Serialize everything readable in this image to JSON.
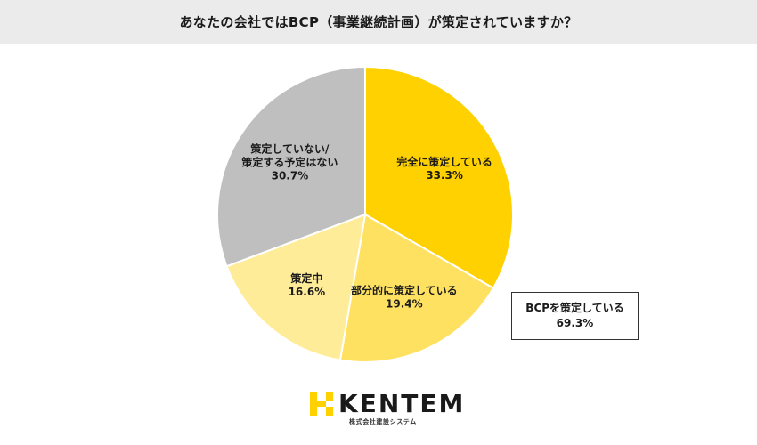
{
  "title": "あなたの会社ではBCP（事業継続計画）が策定されていますか？",
  "chart_data": {
    "type": "pie",
    "title": "あなたの会社ではBCP（事業継続計画）が策定されていますか？",
    "slices": [
      {
        "label_lines": [
          "完全に策定している"
        ],
        "value": 33.3,
        "value_label": "33.3%",
        "color": "#FFD100"
      },
      {
        "label_lines": [
          "部分的に策定している"
        ],
        "value": 19.4,
        "value_label": "19.4%",
        "color": "#FFE162"
      },
      {
        "label_lines": [
          "策定中"
        ],
        "value": 16.6,
        "value_label": "16.6%",
        "color": "#FFEC99"
      },
      {
        "label_lines": [
          "策定していない/",
          "策定する予定はない"
        ],
        "value": 30.7,
        "value_label": "30.7%",
        "color": "#BFBFBF"
      }
    ],
    "start": "12 o'clock",
    "direction": "clockwise",
    "annotation": {
      "lines": [
        "BCPを策定している",
        "69.3%"
      ]
    }
  },
  "logo": {
    "name": "KENTEM",
    "subtitle": "株式会社建設システム",
    "accent": "#FFD100"
  }
}
